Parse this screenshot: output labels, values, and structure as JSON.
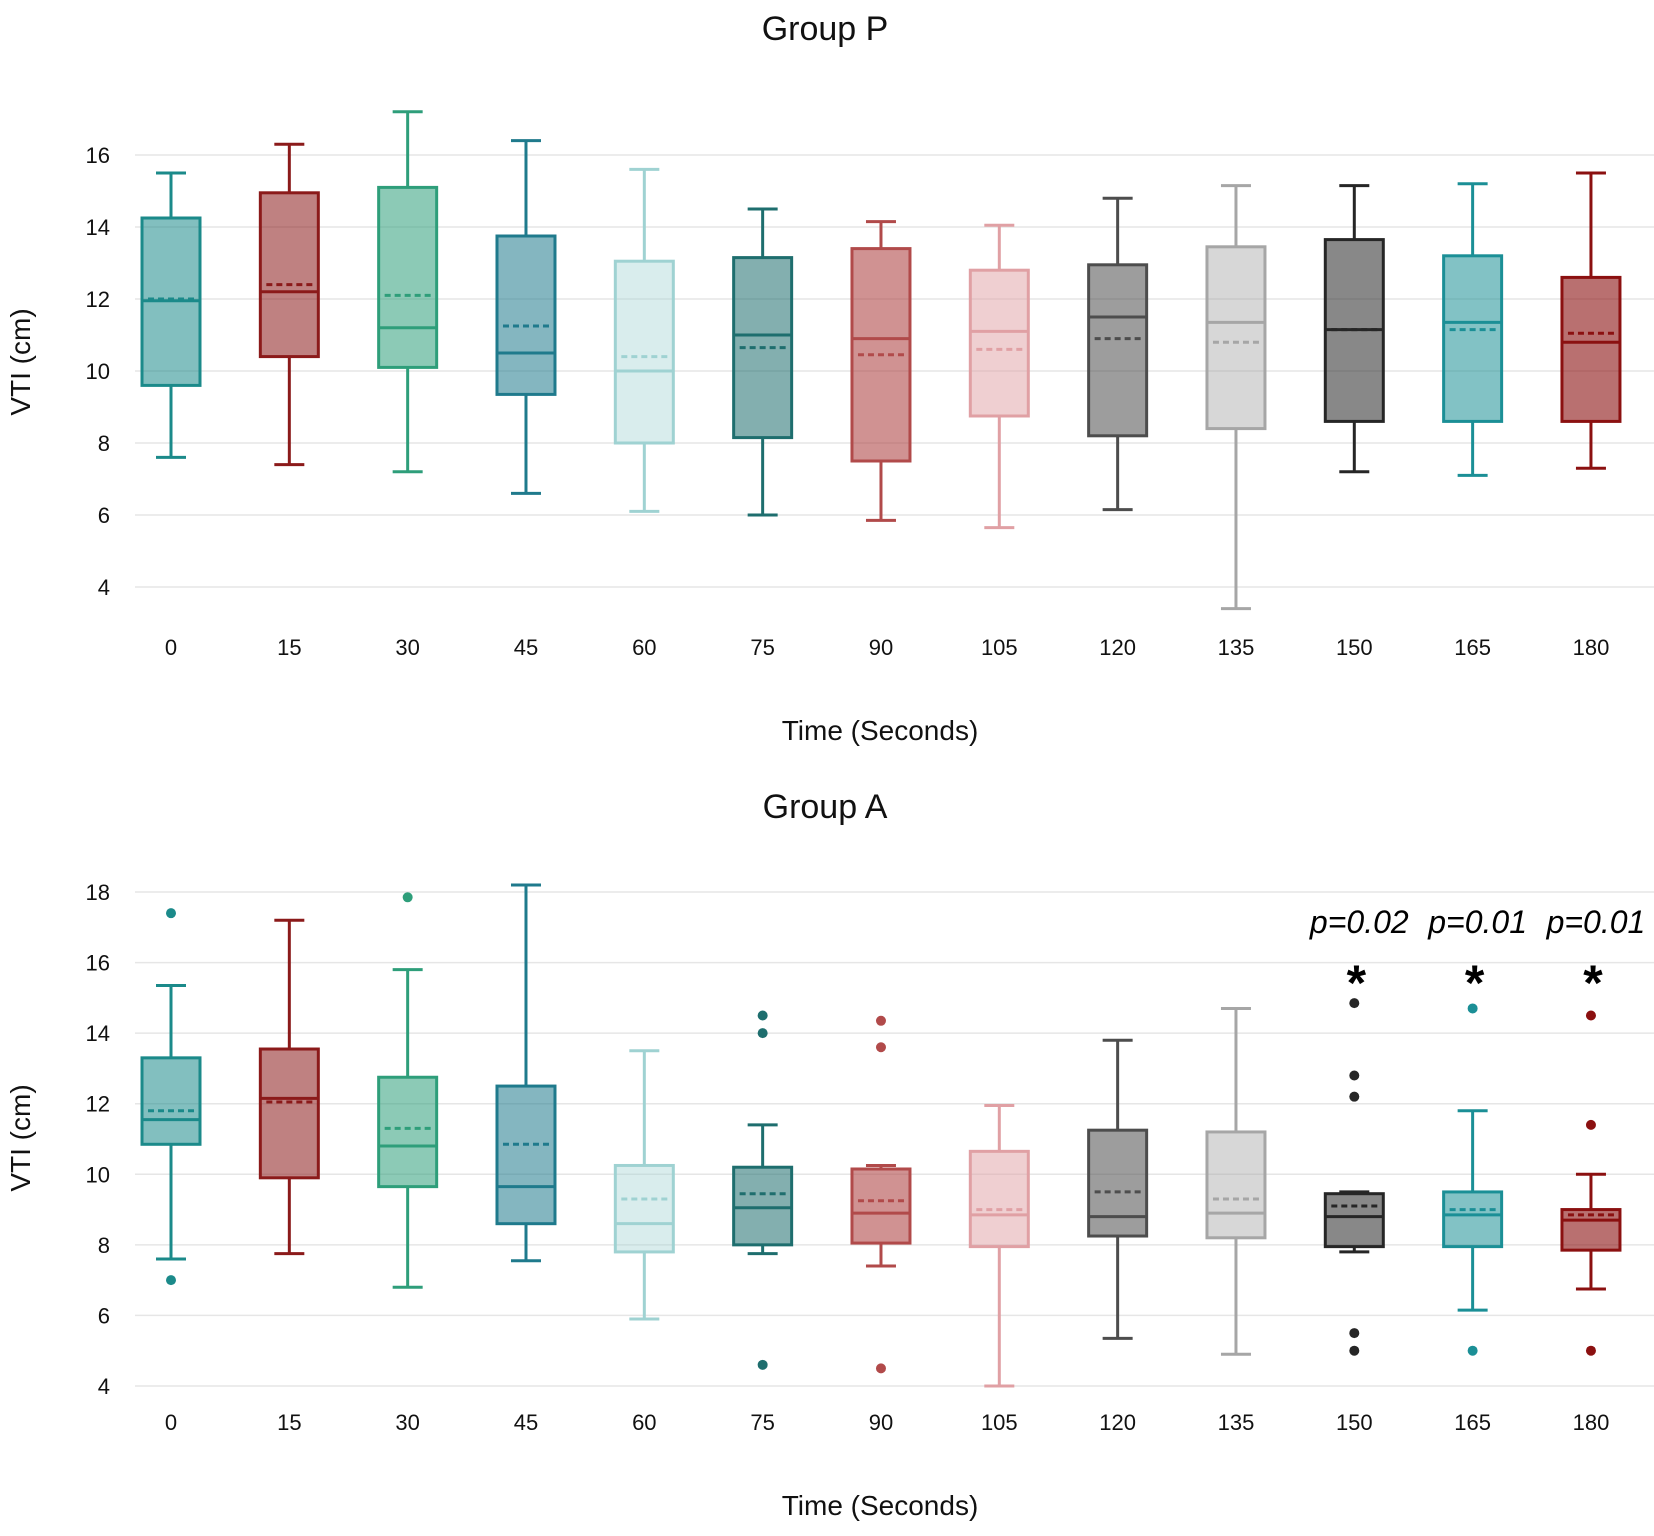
{
  "chart_data": [
    {
      "type": "box",
      "title": "Group P",
      "xlabel": "Time (Seconds)",
      "ylabel": "VTI (cm)",
      "ylim": [
        3,
        17.5
      ],
      "yticks": [
        4,
        6,
        8,
        10,
        12,
        14,
        16
      ],
      "grid": true,
      "categories": [
        "0",
        "15",
        "30",
        "45",
        "60",
        "75",
        "90",
        "105",
        "120",
        "135",
        "150",
        "165",
        "180"
      ],
      "colors": [
        "#1b8a8a",
        "#8b1a1a",
        "#2e9e7a",
        "#1f7a8c",
        "#9fd2d2",
        "#1e6e6e",
        "#b14a4a",
        "#e0a0a4",
        "#4d4d4d",
        "#a6a6a6",
        "#262626",
        "#1b8f96",
        "#8b1010"
      ],
      "fill_opacity": [
        0.55,
        0.55,
        0.55,
        0.55,
        0.4,
        0.55,
        0.6,
        0.5,
        0.55,
        0.45,
        0.55,
        0.55,
        0.6
      ],
      "boxes": [
        {
          "whisker_low": 7.6,
          "q1": 9.6,
          "median": 11.95,
          "mean": 12.0,
          "q3": 14.25,
          "whisker_high": 15.5,
          "outliers": []
        },
        {
          "whisker_low": 7.4,
          "q1": 10.4,
          "median": 12.2,
          "mean": 12.4,
          "q3": 14.95,
          "whisker_high": 16.3,
          "outliers": []
        },
        {
          "whisker_low": 7.2,
          "q1": 10.1,
          "median": 11.2,
          "mean": 12.1,
          "q3": 15.1,
          "whisker_high": 17.2,
          "outliers": []
        },
        {
          "whisker_low": 6.6,
          "q1": 9.35,
          "median": 10.5,
          "mean": 11.25,
          "q3": 13.75,
          "whisker_high": 16.4,
          "outliers": []
        },
        {
          "whisker_low": 6.1,
          "q1": 8.0,
          "median": 10.0,
          "mean": 10.4,
          "q3": 13.05,
          "whisker_high": 15.6,
          "outliers": []
        },
        {
          "whisker_low": 6.0,
          "q1": 8.15,
          "median": 11.0,
          "mean": 10.65,
          "q3": 13.15,
          "whisker_high": 14.5,
          "outliers": []
        },
        {
          "whisker_low": 5.85,
          "q1": 7.5,
          "median": 10.9,
          "mean": 10.45,
          "q3": 13.4,
          "whisker_high": 14.15,
          "outliers": []
        },
        {
          "whisker_low": 5.65,
          "q1": 8.75,
          "median": 11.1,
          "mean": 10.6,
          "q3": 12.8,
          "whisker_high": 14.05,
          "outliers": []
        },
        {
          "whisker_low": 6.15,
          "q1": 8.2,
          "median": 11.5,
          "mean": 10.9,
          "q3": 12.95,
          "whisker_high": 14.8,
          "outliers": []
        },
        {
          "whisker_low": 3.4,
          "q1": 8.4,
          "median": 11.35,
          "mean": 10.8,
          "q3": 13.45,
          "whisker_high": 15.15,
          "outliers": []
        },
        {
          "whisker_low": 7.2,
          "q1": 8.6,
          "median": 11.15,
          "mean": 11.15,
          "q3": 13.65,
          "whisker_high": 15.15,
          "outliers": []
        },
        {
          "whisker_low": 7.1,
          "q1": 8.6,
          "median": 11.35,
          "mean": 11.15,
          "q3": 13.2,
          "whisker_high": 15.2,
          "outliers": []
        },
        {
          "whisker_low": 7.3,
          "q1": 8.6,
          "median": 10.8,
          "mean": 11.05,
          "q3": 12.6,
          "whisker_high": 15.5,
          "outliers": []
        }
      ],
      "annotations": []
    },
    {
      "type": "box",
      "title": "Group A",
      "xlabel": "Time (Seconds)",
      "ylabel": "VTI (cm)",
      "ylim": [
        3.8,
        18.5
      ],
      "yticks": [
        4,
        6,
        8,
        10,
        12,
        14,
        16,
        18
      ],
      "grid": true,
      "categories": [
        "0",
        "15",
        "30",
        "45",
        "60",
        "75",
        "90",
        "105",
        "120",
        "135",
        "150",
        "165",
        "180"
      ],
      "colors": [
        "#1b8a8a",
        "#8b1a1a",
        "#2e9e7a",
        "#1f7a8c",
        "#9fd2d2",
        "#1e6e6e",
        "#b14a4a",
        "#e0a0a4",
        "#4d4d4d",
        "#a6a6a6",
        "#262626",
        "#1b8f96",
        "#8b1010"
      ],
      "fill_opacity": [
        0.55,
        0.55,
        0.55,
        0.55,
        0.4,
        0.55,
        0.6,
        0.5,
        0.55,
        0.45,
        0.55,
        0.55,
        0.6
      ],
      "boxes": [
        {
          "whisker_low": 7.6,
          "q1": 10.85,
          "median": 11.55,
          "mean": 11.8,
          "q3": 13.3,
          "whisker_high": 15.35,
          "outliers": [
            17.4,
            7.0
          ]
        },
        {
          "whisker_low": 7.75,
          "q1": 9.9,
          "median": 12.15,
          "mean": 12.05,
          "q3": 13.55,
          "whisker_high": 17.2,
          "outliers": []
        },
        {
          "whisker_low": 6.8,
          "q1": 9.65,
          "median": 10.8,
          "mean": 11.3,
          "q3": 12.75,
          "whisker_high": 15.8,
          "outliers": [
            17.85
          ]
        },
        {
          "whisker_low": 7.55,
          "q1": 8.6,
          "median": 9.65,
          "mean": 10.85,
          "q3": 12.5,
          "whisker_high": 18.2,
          "outliers": []
        },
        {
          "whisker_low": 5.9,
          "q1": 7.8,
          "median": 8.6,
          "mean": 9.3,
          "q3": 10.25,
          "whisker_high": 13.5,
          "outliers": []
        },
        {
          "whisker_low": 7.75,
          "q1": 8.0,
          "median": 9.05,
          "mean": 9.45,
          "q3": 10.2,
          "whisker_high": 11.4,
          "outliers": [
            14.5,
            14.0,
            4.6
          ]
        },
        {
          "whisker_low": 7.4,
          "q1": 8.05,
          "median": 8.9,
          "mean": 9.25,
          "q3": 10.15,
          "whisker_high": 10.25,
          "outliers": [
            14.35,
            13.6,
            4.5
          ]
        },
        {
          "whisker_low": 4.0,
          "q1": 7.95,
          "median": 8.85,
          "mean": 9.0,
          "q3": 10.65,
          "whisker_high": 11.95,
          "outliers": []
        },
        {
          "whisker_low": 5.35,
          "q1": 8.25,
          "median": 8.8,
          "mean": 9.5,
          "q3": 11.25,
          "whisker_high": 13.8,
          "outliers": []
        },
        {
          "whisker_low": 4.9,
          "q1": 8.2,
          "median": 8.9,
          "mean": 9.3,
          "q3": 11.2,
          "whisker_high": 14.7,
          "outliers": []
        },
        {
          "whisker_low": 7.8,
          "q1": 7.95,
          "median": 8.8,
          "mean": 9.1,
          "q3": 9.45,
          "whisker_high": 9.5,
          "outliers": [
            14.85,
            12.8,
            12.2,
            5.5,
            5.0
          ]
        },
        {
          "whisker_low": 6.15,
          "q1": 7.95,
          "median": 8.85,
          "mean": 9.0,
          "q3": 9.5,
          "whisker_high": 11.8,
          "outliers": [
            14.7,
            5.0
          ]
        },
        {
          "whisker_low": 6.75,
          "q1": 7.85,
          "median": 8.7,
          "mean": 8.85,
          "q3": 9.0,
          "whisker_high": 10.0,
          "outliers": [
            14.5,
            11.4,
            5.0
          ]
        }
      ],
      "annotations": [
        {
          "category": "150",
          "pvalue": "p=0.02",
          "marker": "*"
        },
        {
          "category": "165",
          "pvalue": "p=0.01",
          "marker": "*"
        },
        {
          "category": "180",
          "pvalue": "p=0.01",
          "marker": "*"
        }
      ]
    }
  ]
}
